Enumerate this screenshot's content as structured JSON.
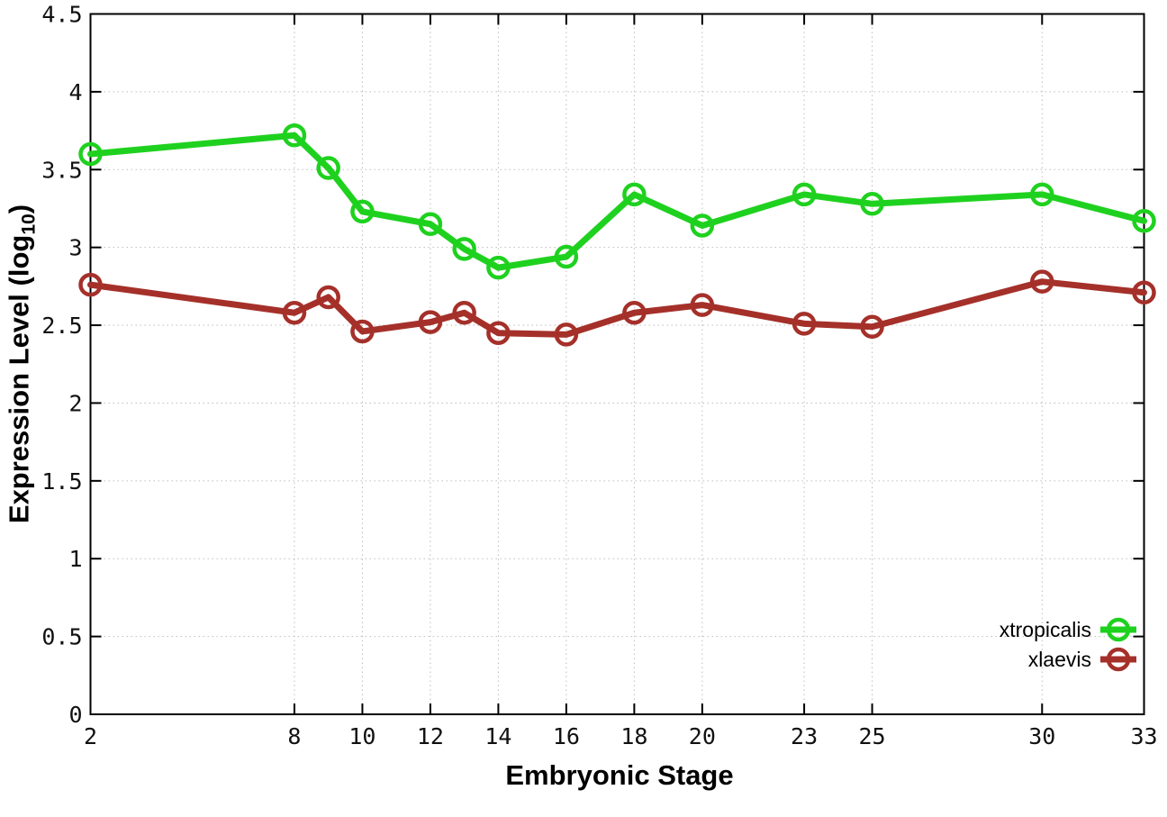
{
  "chart_data": {
    "type": "line",
    "title": "",
    "xlabel": "Embryonic Stage",
    "ylabel_prefix": "Expression Level (log",
    "ylabel_sub": "10",
    "ylabel_suffix": ")",
    "xlim": [
      2,
      33
    ],
    "ylim": [
      0,
      4.5
    ],
    "xticks": [
      2,
      8,
      10,
      12,
      14,
      16,
      18,
      20,
      23,
      25,
      30,
      33
    ],
    "yticks": [
      0,
      0.5,
      1,
      1.5,
      2,
      2.5,
      3,
      3.5,
      4,
      4.5
    ],
    "grid": true,
    "grid_style": "dotted",
    "legend_position": "inside-bottom-right",
    "marker": "open-circle",
    "x": [
      2,
      8,
      9,
      10,
      12,
      13,
      14,
      16,
      18,
      20,
      23,
      25,
      30,
      33
    ],
    "series": [
      {
        "name": "xtropicalis",
        "color": "#1fd11f",
        "values": [
          3.6,
          3.72,
          3.51,
          3.23,
          3.15,
          2.99,
          2.87,
          2.94,
          3.34,
          3.14,
          3.34,
          3.28,
          3.34,
          3.17
        ]
      },
      {
        "name": "xlaevis",
        "color": "#a5302a",
        "values": [
          2.76,
          2.58,
          2.68,
          2.46,
          2.52,
          2.58,
          2.45,
          2.44,
          2.58,
          2.63,
          2.51,
          2.49,
          2.78,
          2.71
        ]
      }
    ],
    "colors": {
      "axis": "#000000",
      "grid": "#bdbdbd",
      "background": "#ffffff"
    }
  }
}
